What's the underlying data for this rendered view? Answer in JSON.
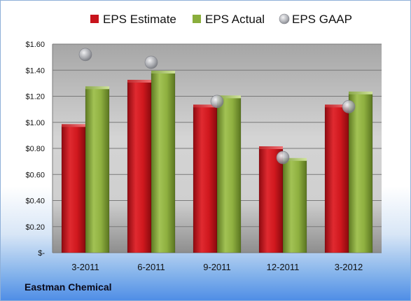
{
  "chart_data": {
    "type": "bar",
    "title": "",
    "company_label": "Eastman Chemical",
    "categories": [
      "3-2011",
      "6-2011",
      "9-2011",
      "12-2011",
      "3-2012"
    ],
    "series": [
      {
        "name": "EPS Estimate",
        "kind": "bar",
        "color": "#c8141c",
        "values": [
          0.97,
          1.31,
          1.12,
          0.8,
          1.12
        ]
      },
      {
        "name": "EPS Actual",
        "kind": "bar",
        "color": "#8aae3c",
        "values": [
          1.26,
          1.38,
          1.19,
          0.71,
          1.22
        ]
      },
      {
        "name": "EPS GAAP",
        "kind": "marker",
        "color": "#a8aab0",
        "values": [
          1.52,
          1.46,
          1.16,
          0.73,
          1.12
        ]
      }
    ],
    "yticks": [
      "$-",
      "$0.20",
      "$0.40",
      "$0.60",
      "$0.80",
      "$1.00",
      "$1.20",
      "$1.40",
      "$1.60"
    ],
    "ylim": [
      0,
      1.6
    ],
    "grid": true,
    "legend_position": "top"
  }
}
